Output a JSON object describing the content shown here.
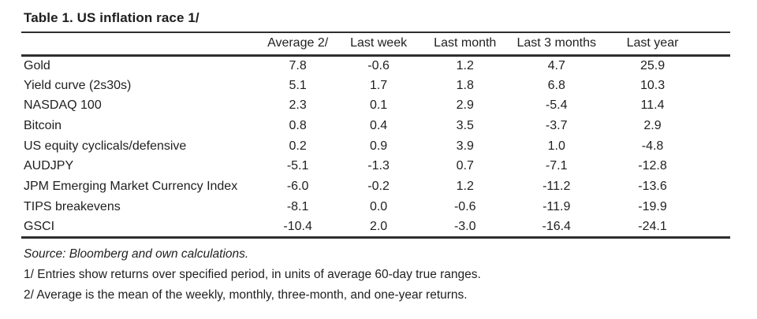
{
  "table": {
    "title": "Table 1. US inflation race 1/",
    "columns": [
      "Average 2/",
      "Last week",
      "Last month",
      "Last 3 months",
      "Last year"
    ],
    "rows": [
      {
        "label": "Gold",
        "values": [
          "7.8",
          "-0.6",
          "1.2",
          "4.7",
          "25.9"
        ]
      },
      {
        "label": "Yield curve (2s30s)",
        "values": [
          "5.1",
          "1.7",
          "1.8",
          "6.8",
          "10.3"
        ]
      },
      {
        "label": "NASDAQ 100",
        "values": [
          "2.3",
          "0.1",
          "2.9",
          "-5.4",
          "11.4"
        ]
      },
      {
        "label": "Bitcoin",
        "values": [
          "0.8",
          "0.4",
          "3.5",
          "-3.7",
          "2.9"
        ]
      },
      {
        "label": "US equity cyclicals/defensive",
        "values": [
          "0.2",
          "0.9",
          "3.9",
          "1.0",
          "-4.8"
        ]
      },
      {
        "label": "AUDJPY",
        "values": [
          "-5.1",
          "-1.3",
          "0.7",
          "-7.1",
          "-12.8"
        ]
      },
      {
        "label": "JPM Emerging Market Currency Index",
        "values": [
          "-6.0",
          "-0.2",
          "1.2",
          "-11.2",
          "-13.6"
        ]
      },
      {
        "label": "TIPS breakevens",
        "values": [
          "-8.1",
          "0.0",
          "-0.6",
          "-11.9",
          "-19.9"
        ]
      },
      {
        "label": "GSCI",
        "values": [
          "-10.4",
          "2.0",
          "-3.0",
          "-16.4",
          "-24.1"
        ]
      }
    ]
  },
  "footer": {
    "source": "Source: Bloomberg and own calculations.",
    "notes": [
      "1/ Entries show returns over specified period, in units of average 60-day true ranges.",
      "2/ Average is the mean of the weekly, monthly, three-month, and one-year returns."
    ]
  },
  "colors": {
    "background": "#ffffff",
    "text": "#1f1f1f",
    "rule": "#2e2e2e"
  }
}
